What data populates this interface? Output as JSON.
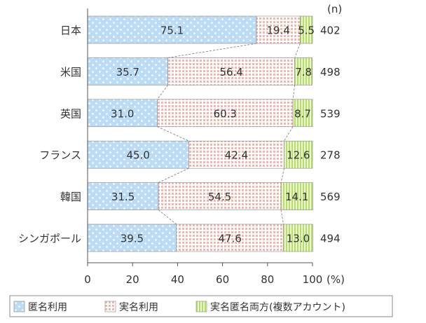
{
  "chart_data": {
    "type": "bar",
    "orientation": "horizontal",
    "stacked": true,
    "title": "",
    "categories": [
      "日本",
      "米国",
      "英国",
      "フランス",
      "韓国",
      "シンガポール"
    ],
    "series": [
      {
        "name": "匿名利用",
        "values": [
          75.1,
          35.7,
          31.0,
          45.0,
          31.5,
          39.5
        ],
        "labels": [
          "75.1",
          "35.7",
          "31.0",
          "45.0",
          "31.5",
          "39.5"
        ],
        "color": "#bcdcf6",
        "pattern": "dots"
      },
      {
        "name": "実名利用",
        "values": [
          19.4,
          56.4,
          60.3,
          42.4,
          54.5,
          47.6
        ],
        "labels": [
          "19.4",
          "56.4",
          "60.3",
          "42.4",
          "54.5",
          "47.6"
        ],
        "color": "#f4c7c1",
        "pattern": "grid"
      },
      {
        "name": "実名匿名両方(複数アカウント)",
        "values": [
          5.5,
          7.8,
          8.7,
          12.6,
          14.1,
          13.0
        ],
        "labels": [
          "5.5",
          "7.8",
          "8.7",
          "12.6",
          "14.1",
          "13.0"
        ],
        "color": "#d5ec9c",
        "pattern": "vertical-lines"
      }
    ],
    "n_header": "(n)",
    "n_values": [
      "402",
      "498",
      "539",
      "278",
      "569",
      "494"
    ],
    "x_ticks": [
      "0",
      "20",
      "40",
      "60",
      "80",
      "100"
    ],
    "x_unit": "(%)",
    "xlim": [
      0,
      100
    ],
    "grid": false,
    "connector_lines": "dashed",
    "legend_position": "bottom"
  }
}
